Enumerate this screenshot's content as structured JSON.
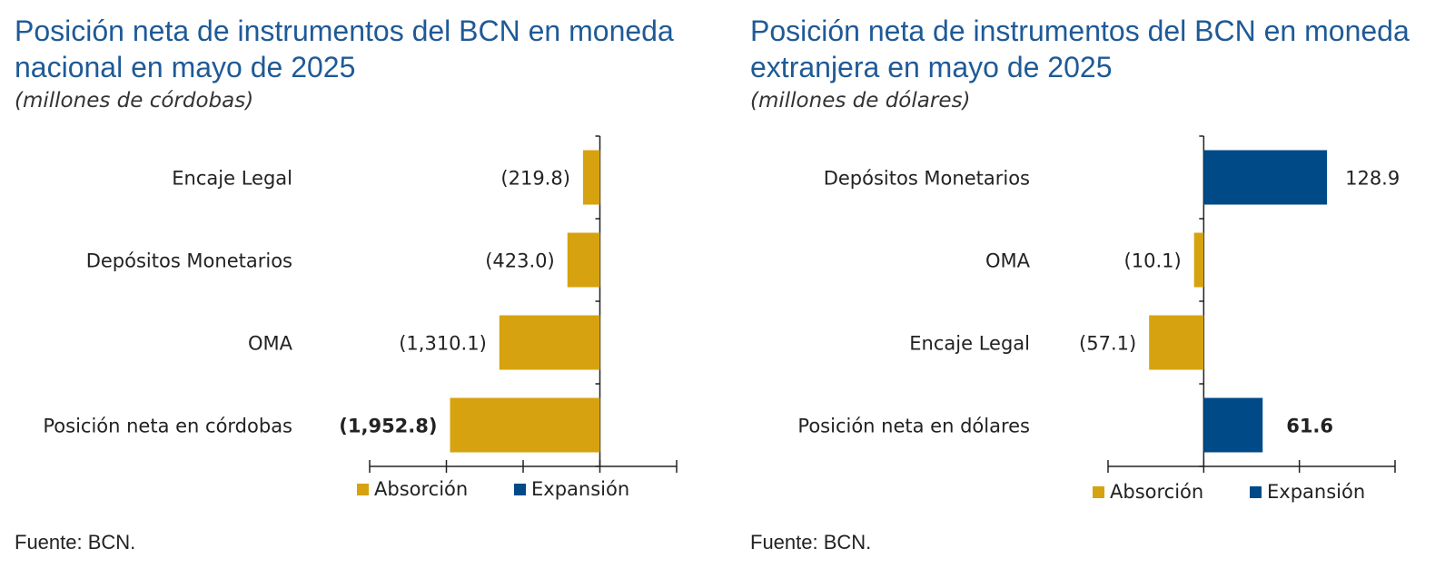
{
  "colors": {
    "absorcion": "#d6a20f",
    "expansion": "#004a87",
    "title": "#1f5a96",
    "text": "#222222"
  },
  "source": "Fuente: BCN.",
  "legend": {
    "absorcion": "Absorción",
    "expansion": "Expansión"
  },
  "chart_data": [
    {
      "type": "bar",
      "orientation": "horizontal",
      "title": "Posición neta de instrumentos del BCN en moneda nacional en mayo de 2025",
      "subtitle": "(millones de córdobas)",
      "categories": [
        "Encaje Legal",
        "Depósitos Monetarios",
        "OMA",
        "Posición neta en córdobas"
      ],
      "values": [
        -219.8,
        -423.0,
        -1310.1,
        -1952.8
      ],
      "labels": [
        "(219.8)",
        "(423.0)",
        "(1,310.1)",
        "(1,952.8)"
      ],
      "bold_last": true,
      "xlim": [
        -3000,
        1000
      ],
      "xticks": [
        -3000,
        -2000,
        -1000,
        0,
        1000
      ],
      "grid": false,
      "legend_position": "bottom"
    },
    {
      "type": "bar",
      "orientation": "horizontal",
      "title": "Posición neta de instrumentos del BCN en moneda extranjera en mayo de 2025",
      "subtitle": "(millones de dólares)",
      "categories": [
        "Depósitos Monetarios",
        "OMA",
        "Encaje Legal",
        "Posición neta en dólares"
      ],
      "values": [
        128.9,
        -10.1,
        -57.1,
        61.6
      ],
      "labels": [
        "128.9",
        "(10.1)",
        "(57.1)",
        "61.6"
      ],
      "bold_last": true,
      "xlim": [
        -100,
        200
      ],
      "xticks": [
        -100,
        0,
        100,
        200
      ],
      "grid": false,
      "legend_position": "bottom"
    }
  ]
}
